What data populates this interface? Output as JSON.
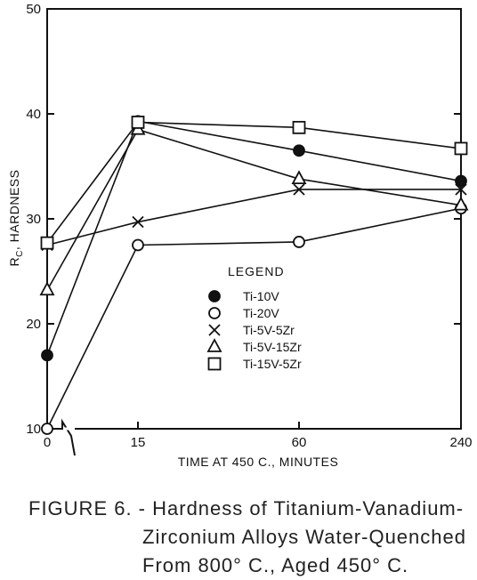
{
  "chart_data": {
    "type": "line",
    "ylabel_main": "R",
    "ylabel_sub": "C",
    "ylabel_rest": ", HARDNESS",
    "xlabel": "TIME AT 450  C., MINUTES",
    "ylim": [
      10,
      50
    ],
    "yticks": [
      "10",
      "20",
      "30",
      "40",
      "50"
    ],
    "categories": [
      "0",
      "15",
      "60",
      "240"
    ],
    "grid": false,
    "axis_break": true,
    "legend_title": "LEGEND",
    "series": [
      {
        "name": "Ti-10V",
        "marker": "filled-circle",
        "values": [
          17.0,
          39.3,
          36.5,
          33.6
        ]
      },
      {
        "name": "Ti-20V",
        "marker": "open-circle",
        "values": [
          10.0,
          27.5,
          27.8,
          31.0
        ]
      },
      {
        "name": "Ti-5V-5Zr",
        "marker": "x",
        "values": [
          27.5,
          29.7,
          32.8,
          32.8
        ]
      },
      {
        "name": "Ti-5V-15Zr",
        "marker": "triangle",
        "values": [
          23.2,
          38.5,
          33.8,
          31.3
        ]
      },
      {
        "name": "Ti-15V-5Zr",
        "marker": "square",
        "values": [
          27.7,
          39.2,
          38.7,
          36.7
        ]
      }
    ]
  },
  "caption": {
    "line1": "FIGURE 6. - Hardness of Titanium-Vanadium-",
    "line2": "Zirconium Alloys Water-Quenched",
    "line3": "From 800° C., Aged 450° C."
  }
}
